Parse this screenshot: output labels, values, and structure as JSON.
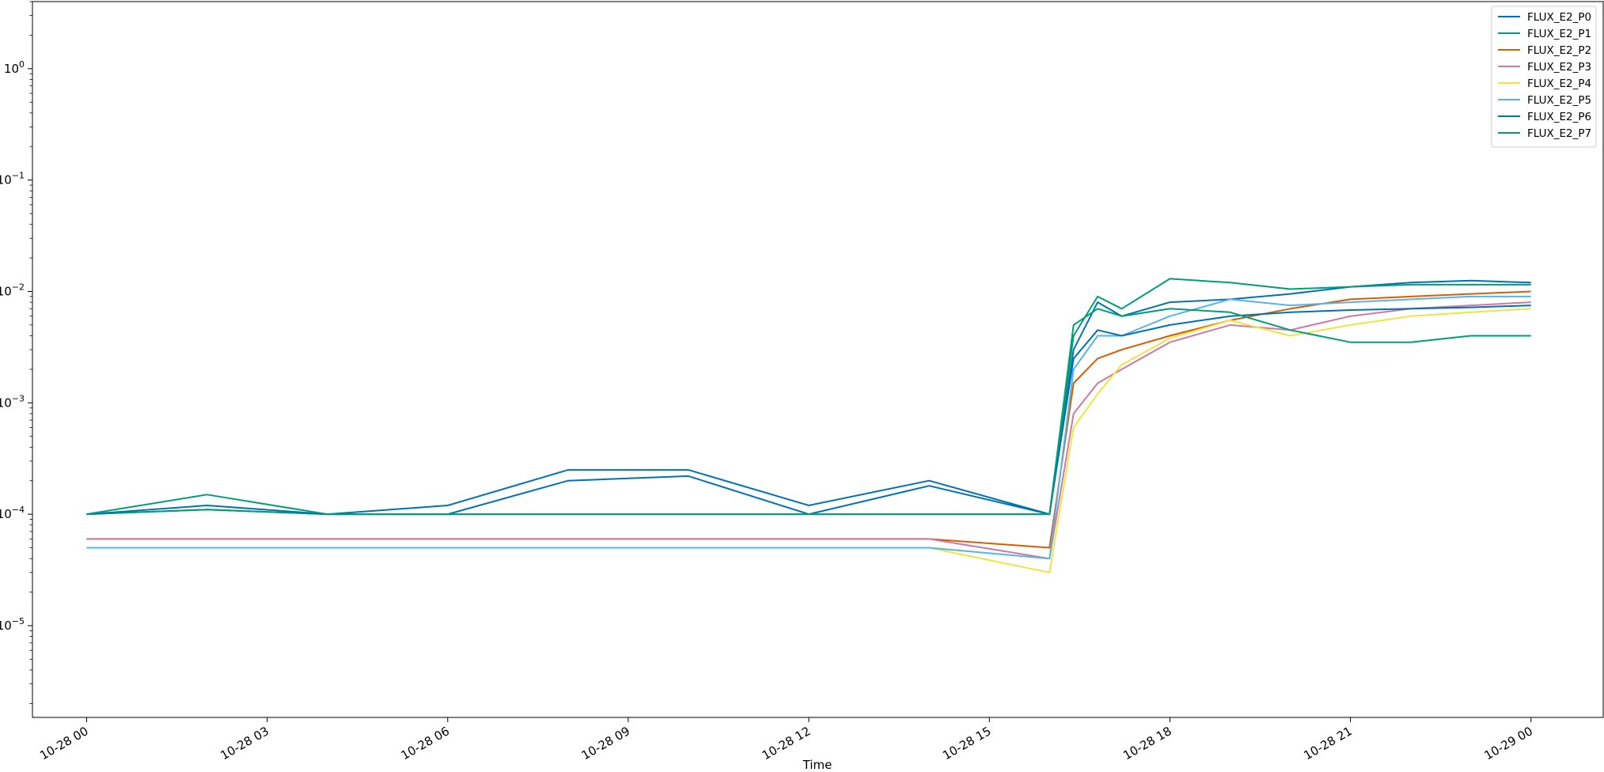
{
  "chart_data": {
    "type": "line",
    "title": "",
    "xlabel": "Time",
    "ylabel": "",
    "yscale": "log",
    "ylim": [
      1.5e-06,
      4.0
    ],
    "xlim_hours": [
      -0.9,
      25.2
    ],
    "grid": false,
    "legend_position": "top-right",
    "x_ticks": [
      {
        "hour": 0,
        "label": "10-28 00"
      },
      {
        "hour": 3,
        "label": "10-28 03"
      },
      {
        "hour": 6,
        "label": "10-28 06"
      },
      {
        "hour": 9,
        "label": "10-28 09"
      },
      {
        "hour": 12,
        "label": "10-28 12"
      },
      {
        "hour": 15,
        "label": "10-28 15"
      },
      {
        "hour": 18,
        "label": "10-28 18"
      },
      {
        "hour": 21,
        "label": "10-28 21"
      },
      {
        "hour": 24,
        "label": "10-29 00"
      }
    ],
    "y_ticks": [
      {
        "value": 1e-05,
        "base": "10",
        "exp": "−5"
      },
      {
        "value": 0.0001,
        "base": "10",
        "exp": "−4"
      },
      {
        "value": 0.001,
        "base": "10",
        "exp": "−3"
      },
      {
        "value": 0.01,
        "base": "10",
        "exp": "−2"
      },
      {
        "value": 0.1,
        "base": "10",
        "exp": "−1"
      },
      {
        "value": 1,
        "base": "10",
        "exp": "0"
      }
    ],
    "series": [
      {
        "name": "FLUX_E2_P0",
        "color": "#0072b2",
        "x": [
          0,
          2,
          4,
          6,
          8,
          10,
          12,
          14,
          16,
          16.4,
          16.8,
          17.2,
          18,
          19,
          20,
          21,
          22,
          23,
          24
        ],
        "y": [
          0.0001,
          0.00011,
          0.0001,
          0.0001,
          0.0002,
          0.00022,
          0.0001,
          0.00018,
          0.0001,
          0.003,
          0.008,
          0.006,
          0.008,
          0.0085,
          0.0095,
          0.011,
          0.012,
          0.0125,
          0.012
        ]
      },
      {
        "name": "FLUX_E2_P1",
        "color": "#009e73",
        "x": [
          0,
          2,
          4,
          6,
          8,
          10,
          12,
          14,
          16,
          16.4,
          16.8,
          17.2,
          18,
          19,
          20,
          21,
          22,
          23,
          24
        ],
        "y": [
          0.0001,
          0.00011,
          0.0001,
          0.0001,
          0.0001,
          0.0001,
          0.0001,
          0.0001,
          0.0001,
          0.004,
          0.009,
          0.007,
          0.013,
          0.012,
          0.0105,
          0.011,
          0.0115,
          0.0115,
          0.0115
        ]
      },
      {
        "name": "FLUX_E2_P2",
        "color": "#d55e00",
        "x": [
          0,
          2,
          4,
          6,
          8,
          10,
          12,
          14,
          16,
          16.4,
          16.8,
          17.2,
          18,
          19,
          20,
          21,
          22,
          23,
          24
        ],
        "y": [
          6e-05,
          6e-05,
          6e-05,
          6e-05,
          6e-05,
          6e-05,
          6e-05,
          6e-05,
          5e-05,
          0.0015,
          0.0025,
          0.003,
          0.004,
          0.0055,
          0.007,
          0.0085,
          0.009,
          0.0095,
          0.01
        ]
      },
      {
        "name": "FLUX_E2_P3",
        "color": "#cc79a7",
        "x": [
          0,
          2,
          4,
          6,
          8,
          10,
          12,
          14,
          16,
          16.4,
          16.8,
          17.2,
          18,
          19,
          20,
          21,
          22,
          23,
          24
        ],
        "y": [
          6e-05,
          6e-05,
          6e-05,
          6e-05,
          6e-05,
          6e-05,
          6e-05,
          6e-05,
          4e-05,
          0.0008,
          0.0015,
          0.002,
          0.0035,
          0.005,
          0.0045,
          0.006,
          0.007,
          0.0075,
          0.008
        ]
      },
      {
        "name": "FLUX_E2_P4",
        "color": "#f0e442",
        "x": [
          0,
          2,
          4,
          6,
          8,
          10,
          12,
          14,
          16,
          16.4,
          16.8,
          17.2,
          18,
          19,
          20,
          21,
          22,
          23,
          24
        ],
        "y": [
          5e-05,
          5e-05,
          5e-05,
          5e-05,
          5e-05,
          5e-05,
          5e-05,
          5e-05,
          3e-05,
          0.0006,
          0.0012,
          0.0022,
          0.0038,
          0.0055,
          0.004,
          0.005,
          0.006,
          0.0065,
          0.007
        ]
      },
      {
        "name": "FLUX_E2_P5",
        "color": "#56b4e9",
        "x": [
          0,
          2,
          4,
          6,
          8,
          10,
          12,
          14,
          16,
          16.4,
          16.8,
          17.2,
          18,
          19,
          20,
          21,
          22,
          23,
          24
        ],
        "y": [
          5e-05,
          5e-05,
          5e-05,
          5e-05,
          5e-05,
          5e-05,
          5e-05,
          5e-05,
          4e-05,
          0.002,
          0.004,
          0.004,
          0.006,
          0.0085,
          0.0075,
          0.008,
          0.0085,
          0.009,
          0.009
        ]
      },
      {
        "name": "FLUX_E2_P6",
        "color": "#0072b2",
        "x": [
          0,
          2,
          4,
          6,
          8,
          10,
          12,
          14,
          16,
          16.4,
          16.8,
          17.2,
          18,
          19,
          20,
          21,
          22,
          23,
          24
        ],
        "y": [
          0.0001,
          0.00012,
          0.0001,
          0.00012,
          0.00025,
          0.00025,
          0.00012,
          0.0002,
          0.0001,
          0.0025,
          0.0045,
          0.004,
          0.005,
          0.006,
          0.0065,
          0.0068,
          0.007,
          0.0072,
          0.0075
        ]
      },
      {
        "name": "FLUX_E2_P7",
        "color": "#009e73",
        "x": [
          0,
          2,
          4,
          6,
          8,
          10,
          12,
          14,
          16,
          16.4,
          16.8,
          17.2,
          18,
          19,
          20,
          21,
          22,
          23,
          24
        ],
        "y": [
          0.0001,
          0.00015,
          0.0001,
          0.0001,
          0.0001,
          0.0001,
          0.0001,
          0.0001,
          0.0001,
          0.005,
          0.007,
          0.006,
          0.007,
          0.0065,
          0.0045,
          0.0035,
          0.0035,
          0.004,
          0.004
        ]
      }
    ]
  }
}
